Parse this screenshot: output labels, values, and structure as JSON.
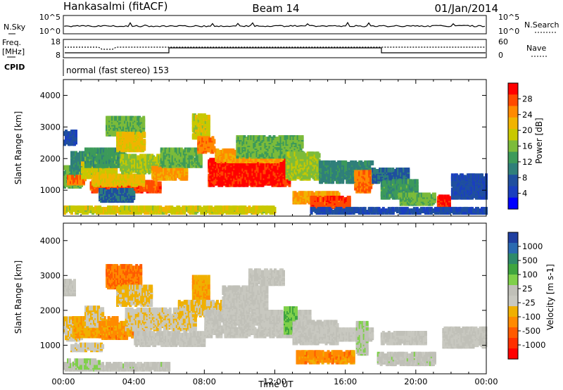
{
  "header": {
    "station": "Hankasalmi (fitACF)",
    "beam": "Beam 14",
    "date": "01/Jan/2014"
  },
  "nsky_panel": {
    "left_label": "N.Sky",
    "right_label": "N.Search",
    "left_ticks": [
      "10^5",
      "10^0"
    ],
    "right_ticks": [
      "10^5",
      "10^0"
    ]
  },
  "freq_panel": {
    "left_label_1": "Freq.",
    "left_label_2": "[MHz]",
    "left_ticks": [
      "18",
      "8"
    ],
    "right_label": "Nave",
    "right_ticks": [
      "60",
      "0"
    ]
  },
  "cpid": {
    "label": "CPID",
    "mode_text": "normal (fast stereo) 153"
  },
  "chart_data": [
    {
      "type": "heatmap",
      "name": "power",
      "ylabel": "Slant Range [km]",
      "ylim": [
        180,
        4500
      ],
      "yticks": [
        1000,
        2000,
        3000,
        4000
      ],
      "ytick_labels": [
        "1000",
        "2000",
        "3000",
        "4000"
      ],
      "xlim": [
        0,
        24
      ],
      "colorbar_label": "Power [dB]",
      "colorbar_ticks": [
        "28",
        "24",
        "20",
        "16",
        "12",
        "8",
        "4"
      ],
      "colorbar_colors": [
        "#ff0000",
        "#ff4a00",
        "#ff8a00",
        "#f0b400",
        "#c8c800",
        "#7cbb3a",
        "#3c9a5a",
        "#2f7f7a",
        "#1f4f9f",
        "#1a3fbf",
        "#0000ff"
      ],
      "colorbar_range": [
        0,
        30
      ],
      "regions": [
        {
          "t0": 0.0,
          "t1": 0.7,
          "r0": 2400,
          "r1": 2800,
          "v": 6
        },
        {
          "t0": 0.0,
          "t1": 1.0,
          "r0": 1050,
          "r1": 1650,
          "v": 14
        },
        {
          "t0": 0.2,
          "t1": 1.2,
          "r0": 1150,
          "r1": 1350,
          "v": 24
        },
        {
          "t0": 0.4,
          "t1": 2.2,
          "r0": 1500,
          "r1": 2100,
          "v": 10
        },
        {
          "t0": 1.0,
          "t1": 3.0,
          "r0": 1350,
          "r1": 1800,
          "v": 18
        },
        {
          "t0": 1.2,
          "t1": 3.5,
          "r0": 1700,
          "r1": 2200,
          "v": 12
        },
        {
          "t0": 1.5,
          "t1": 5.5,
          "r0": 900,
          "r1": 1200,
          "v": 26
        },
        {
          "t0": 1.6,
          "t1": 4.5,
          "r0": 1100,
          "r1": 1400,
          "v": 20
        },
        {
          "t0": 2.0,
          "t1": 4.0,
          "r0": 600,
          "r1": 950,
          "v": 8
        },
        {
          "t0": 2.4,
          "t1": 4.5,
          "r0": 2700,
          "r1": 3200,
          "v": 14
        },
        {
          "t0": 3.0,
          "t1": 4.6,
          "r0": 2200,
          "r1": 2700,
          "v": 20
        },
        {
          "t0": 3.2,
          "t1": 6.8,
          "r0": 1500,
          "r1": 2000,
          "v": 16
        },
        {
          "t0": 5.0,
          "t1": 7.0,
          "r0": 1300,
          "r1": 1650,
          "v": 22
        },
        {
          "t0": 5.5,
          "t1": 7.8,
          "r0": 1700,
          "r1": 2200,
          "v": 14
        },
        {
          "t0": 7.3,
          "t1": 8.2,
          "r0": 2600,
          "r1": 3300,
          "v": 18
        },
        {
          "t0": 7.6,
          "t1": 8.5,
          "r0": 2150,
          "r1": 2600,
          "v": 24
        },
        {
          "t0": 8.2,
          "t1": 12.8,
          "r0": 1100,
          "r1": 1900,
          "v": 28
        },
        {
          "t0": 8.6,
          "t1": 12.4,
          "r0": 1850,
          "r1": 2200,
          "v": 22
        },
        {
          "t0": 9.8,
          "t1": 13.5,
          "r0": 2000,
          "r1": 2600,
          "v": 14
        },
        {
          "t0": 12.6,
          "t1": 14.5,
          "r0": 1300,
          "r1": 2100,
          "v": 16
        },
        {
          "t0": 13.0,
          "t1": 15.6,
          "r0": 550,
          "r1": 850,
          "v": 22
        },
        {
          "t0": 14.0,
          "t1": 16.2,
          "r0": 400,
          "r1": 700,
          "v": 26
        },
        {
          "t0": 14.5,
          "t1": 17.5,
          "r0": 1200,
          "r1": 1800,
          "v": 10
        },
        {
          "t0": 16.5,
          "t1": 17.5,
          "r0": 900,
          "r1": 1500,
          "v": 24
        },
        {
          "t0": 17.5,
          "t1": 19.5,
          "r0": 1200,
          "r1": 1600,
          "v": 8
        },
        {
          "t0": 18.0,
          "t1": 20.0,
          "r0": 700,
          "r1": 1200,
          "v": 12
        },
        {
          "t0": 19.0,
          "t1": 21.0,
          "r0": 500,
          "r1": 800,
          "v": 14
        },
        {
          "t0": 21.2,
          "t1": 21.9,
          "r0": 300,
          "r1": 750,
          "v": 28
        },
        {
          "t0": 22.0,
          "t1": 24.0,
          "r0": 700,
          "r1": 1400,
          "v": 6
        },
        {
          "t0": 0.0,
          "t1": 12.0,
          "r0": 180,
          "r1": 400,
          "v": 18
        },
        {
          "t0": 14.0,
          "t1": 24.0,
          "r0": 180,
          "r1": 350,
          "v": 6
        }
      ]
    },
    {
      "type": "heatmap",
      "name": "velocity",
      "ylabel": "Slant Range [km]",
      "xlabel": "Time UT",
      "ylim": [
        180,
        4500
      ],
      "yticks": [
        1000,
        2000,
        3000,
        4000
      ],
      "ytick_labels": [
        "1000",
        "2000",
        "3000",
        "4000"
      ],
      "xlim": [
        0,
        24
      ],
      "xticks": [
        0,
        4,
        8,
        12,
        16,
        20,
        24
      ],
      "xtick_labels": [
        "00:00",
        "04:00",
        "08:00",
        "12:00",
        "16:00",
        "20:00",
        "00:00"
      ],
      "colorbar_label": "Velocity [m s-1]",
      "colorbar_ticks": [
        "1000",
        "500",
        "100",
        "25",
        "-25",
        "-100",
        "-500",
        "-1000"
      ],
      "colorbar_colors": [
        "#1f3fa0",
        "#2a6ab0",
        "#2e8a6a",
        "#3fa53f",
        "#7fd04a",
        "#c0c0b8",
        "#c8c8c0",
        "#f0b000",
        "#ff8a00",
        "#ff5a00",
        "#ff3000",
        "#ff0000"
      ],
      "colorbar_range": [
        -1000,
        1000
      ],
      "regions": [
        {
          "t0": 0.0,
          "t1": 0.6,
          "r0": 2400,
          "r1": 2800,
          "v": 0
        },
        {
          "t0": 0.0,
          "t1": 1.0,
          "r0": 1100,
          "r1": 1700,
          "v": -150
        },
        {
          "t0": 0.5,
          "t1": 3.0,
          "r0": 1200,
          "r1": 1700,
          "v": -300
        },
        {
          "t0": 0.4,
          "t1": 2.2,
          "r0": 800,
          "r1": 950,
          "v": -120
        },
        {
          "t0": 1.2,
          "t1": 2.2,
          "r0": 1500,
          "r1": 2000,
          "v": -150
        },
        {
          "t0": 2.0,
          "t1": 4.5,
          "r0": 1150,
          "r1": 1600,
          "v": -400
        },
        {
          "t0": 2.4,
          "t1": 4.4,
          "r0": 2600,
          "r1": 3200,
          "v": -500
        },
        {
          "t0": 3.0,
          "t1": 5.0,
          "r0": 2100,
          "r1": 2600,
          "v": -200
        },
        {
          "t0": 3.5,
          "t1": 7.5,
          "r0": 1400,
          "r1": 1950,
          "v": -120
        },
        {
          "t0": 4.0,
          "t1": 8.0,
          "r0": 950,
          "r1": 1300,
          "v": 0
        },
        {
          "t0": 7.3,
          "t1": 8.2,
          "r0": 2200,
          "r1": 2900,
          "v": -300
        },
        {
          "t0": 6.5,
          "t1": 9.0,
          "r0": 1800,
          "r1": 2200,
          "v": -200
        },
        {
          "t0": 8.0,
          "t1": 14.0,
          "r0": 1200,
          "r1": 1900,
          "v": 0
        },
        {
          "t0": 9.0,
          "t1": 11.5,
          "r0": 1900,
          "r1": 2600,
          "v": 0
        },
        {
          "t0": 10.5,
          "t1": 12.5,
          "r0": 2700,
          "r1": 3100,
          "v": 0
        },
        {
          "t0": 12.5,
          "t1": 13.2,
          "r0": 1300,
          "r1": 2000,
          "v": 300
        },
        {
          "t0": 13.0,
          "t1": 15.5,
          "r0": 1000,
          "r1": 1600,
          "v": 0
        },
        {
          "t0": 13.2,
          "t1": 16.4,
          "r0": 450,
          "r1": 750,
          "v": -400
        },
        {
          "t0": 14.5,
          "t1": 17.5,
          "r0": 1100,
          "r1": 1400,
          "v": 0
        },
        {
          "t0": 16.6,
          "t1": 17.2,
          "r0": 700,
          "r1": 1600,
          "v": 120
        },
        {
          "t0": 18.0,
          "t1": 20.5,
          "r0": 1000,
          "r1": 1300,
          "v": 0
        },
        {
          "t0": 17.8,
          "t1": 21.0,
          "r0": 400,
          "r1": 700,
          "v": 60
        },
        {
          "t0": 21.5,
          "t1": 24.0,
          "r0": 900,
          "r1": 1400,
          "v": 0
        },
        {
          "t0": 0.0,
          "t1": 6.0,
          "r0": 200,
          "r1": 400,
          "v": 60
        },
        {
          "t0": 0.2,
          "t1": 2.0,
          "r0": 300,
          "r1": 500,
          "v": 150
        }
      ]
    }
  ]
}
